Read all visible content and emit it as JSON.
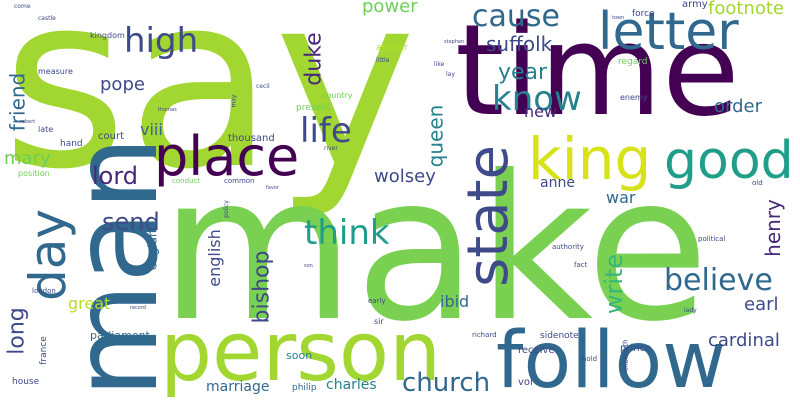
{
  "palette": {
    "dark_purple": "#440154",
    "indigo": "#482878",
    "blue": "#3e4a89",
    "steel_blue": "#31688e",
    "teal": "#26828e",
    "green_teal": "#1f9e89",
    "green": "#35b779",
    "light_green": "#6ece58",
    "lime": "#b5de2b",
    "yellow": "#fde725"
  },
  "words": [
    {
      "text": "say",
      "color": "#a2d630"
    },
    {
      "text": "make",
      "color": "#7ad151"
    },
    {
      "text": "time",
      "color": "#440154"
    },
    {
      "text": "man",
      "color": "#31688e"
    },
    {
      "text": "person",
      "color": "#a2d630"
    },
    {
      "text": "follow",
      "color": "#31688e"
    },
    {
      "text": "place",
      "color": "#440154"
    },
    {
      "text": "king",
      "color": "#d8e219"
    },
    {
      "text": "good",
      "color": "#1f9e89"
    },
    {
      "text": "state",
      "color": "#3e4a89"
    },
    {
      "text": "letter",
      "color": "#31688e"
    },
    {
      "text": "day",
      "color": "#31688e"
    },
    {
      "text": "know",
      "color": "#26828e"
    },
    {
      "text": "high",
      "color": "#3e4a89"
    },
    {
      "text": "cause",
      "color": "#31688e"
    },
    {
      "text": "life",
      "color": "#3e4a89"
    },
    {
      "text": "think",
      "color": "#1f9e89"
    },
    {
      "text": "believe",
      "color": "#31688e"
    },
    {
      "text": "year",
      "color": "#26828e"
    },
    {
      "text": "church",
      "color": "#31688e"
    },
    {
      "text": "long",
      "color": "#3e4a89"
    },
    {
      "text": "lord",
      "color": "#482878"
    },
    {
      "text": "duke",
      "color": "#482878"
    },
    {
      "text": "friend",
      "color": "#31688e"
    },
    {
      "text": "queen",
      "color": "#26828e"
    },
    {
      "text": "write",
      "color": "#35b779"
    },
    {
      "text": "bishop",
      "color": "#3e4a89"
    },
    {
      "text": "henry",
      "color": "#482878"
    },
    {
      "text": "send",
      "color": "#3e4a89"
    },
    {
      "text": "suffolk",
      "color": "#3e4a89"
    },
    {
      "text": "power",
      "color": "#6ece58"
    },
    {
      "text": "footnote",
      "color": "#a2d630"
    },
    {
      "text": "order",
      "color": "#31688e"
    },
    {
      "text": "cardinal",
      "color": "#3e4a89"
    },
    {
      "text": "earl",
      "color": "#3e4a89"
    },
    {
      "text": "pope",
      "color": "#3e4a89"
    },
    {
      "text": "wolsey",
      "color": "#3e4a89"
    },
    {
      "text": "mary",
      "color": "#6ece58"
    },
    {
      "text": "anne",
      "color": "#3e4a89"
    },
    {
      "text": "english",
      "color": "#3e4a89"
    },
    {
      "text": "war",
      "color": "#31688e"
    },
    {
      "text": "great",
      "color": "#b5de2b"
    },
    {
      "text": "viii",
      "color": "#31688e"
    },
    {
      "text": "new",
      "color": "#482878"
    },
    {
      "text": "ibid",
      "color": "#31688e"
    },
    {
      "text": "charles",
      "color": "#26828e"
    },
    {
      "text": "marriage",
      "color": "#31688e"
    },
    {
      "text": "parliament",
      "color": "#31688e"
    },
    {
      "text": "england",
      "color": "#31688e"
    },
    {
      "text": "soon",
      "color": "#26828e"
    },
    {
      "text": "philip",
      "color": "#31688e"
    },
    {
      "text": "vol",
      "color": "#3e4a89"
    },
    {
      "text": "receive",
      "color": "#3e4a89"
    },
    {
      "text": "sidenote",
      "color": "#3e4a89"
    },
    {
      "text": "prince",
      "color": "#3e4a89"
    },
    {
      "text": "army",
      "color": "#3e4a89"
    },
    {
      "text": "force",
      "color": "#3e4a89"
    },
    {
      "text": "court",
      "color": "#3e4a89"
    },
    {
      "text": "thousand",
      "color": "#3e4a89"
    },
    {
      "text": "present",
      "color": "#6ece58"
    },
    {
      "text": "country",
      "color": "#6ece58"
    },
    {
      "text": "appear",
      "color": "#b5de2b"
    },
    {
      "text": "regard",
      "color": "#6ece58"
    },
    {
      "text": "enemy",
      "color": "#3e4a89"
    },
    {
      "text": "measure",
      "color": "#3e4a89"
    },
    {
      "text": "kingdom",
      "color": "#3e4a89"
    },
    {
      "text": "hand",
      "color": "#3e4a89"
    },
    {
      "text": "late",
      "color": "#3e4a89"
    },
    {
      "text": "position",
      "color": "#6ece58"
    },
    {
      "text": "france",
      "color": "#3e4a89"
    },
    {
      "text": "house",
      "color": "#3e4a89"
    },
    {
      "text": "london",
      "color": "#3e4a89"
    },
    {
      "text": "conduct",
      "color": "#6ece58"
    },
    {
      "text": "common",
      "color": "#3e4a89"
    },
    {
      "text": "sir",
      "color": "#3e4a89"
    },
    {
      "text": "early",
      "color": "#3e4a89"
    },
    {
      "text": "authority",
      "color": "#3e4a89"
    },
    {
      "text": "fact",
      "color": "#3e4a89"
    },
    {
      "text": "political",
      "color": "#3e4a89"
    },
    {
      "text": "lady",
      "color": "#3e4a89"
    },
    {
      "text": "old",
      "color": "#3e4a89"
    },
    {
      "text": "hold",
      "color": "#3e4a89"
    },
    {
      "text": "elizabeth",
      "color": "#3e4a89"
    },
    {
      "text": "richard",
      "color": "#3e4a89"
    },
    {
      "text": "come",
      "color": "#3e4a89"
    },
    {
      "text": "river",
      "color": "#3e4a89"
    },
    {
      "text": "lay",
      "color": "#3e4a89"
    },
    {
      "text": "like",
      "color": "#3e4a89"
    },
    {
      "text": "little",
      "color": "#3e4a89"
    },
    {
      "text": "cecil",
      "color": "#3e4a89"
    },
    {
      "text": "castle",
      "color": "#3e4a89"
    },
    {
      "text": "stephen",
      "color": "#3e4a89"
    },
    {
      "text": "son",
      "color": "#3e4a89"
    },
    {
      "text": "policy",
      "color": "#3e4a89"
    },
    {
      "text": "may",
      "color": "#3e4a89"
    },
    {
      "text": "robert",
      "color": "#3e4a89"
    },
    {
      "text": "thomas",
      "color": "#3e4a89"
    },
    {
      "text": "town",
      "color": "#3e4a89"
    },
    {
      "text": "record",
      "color": "#3e4a89"
    },
    {
      "text": "favor",
      "color": "#3e4a89"
    }
  ]
}
